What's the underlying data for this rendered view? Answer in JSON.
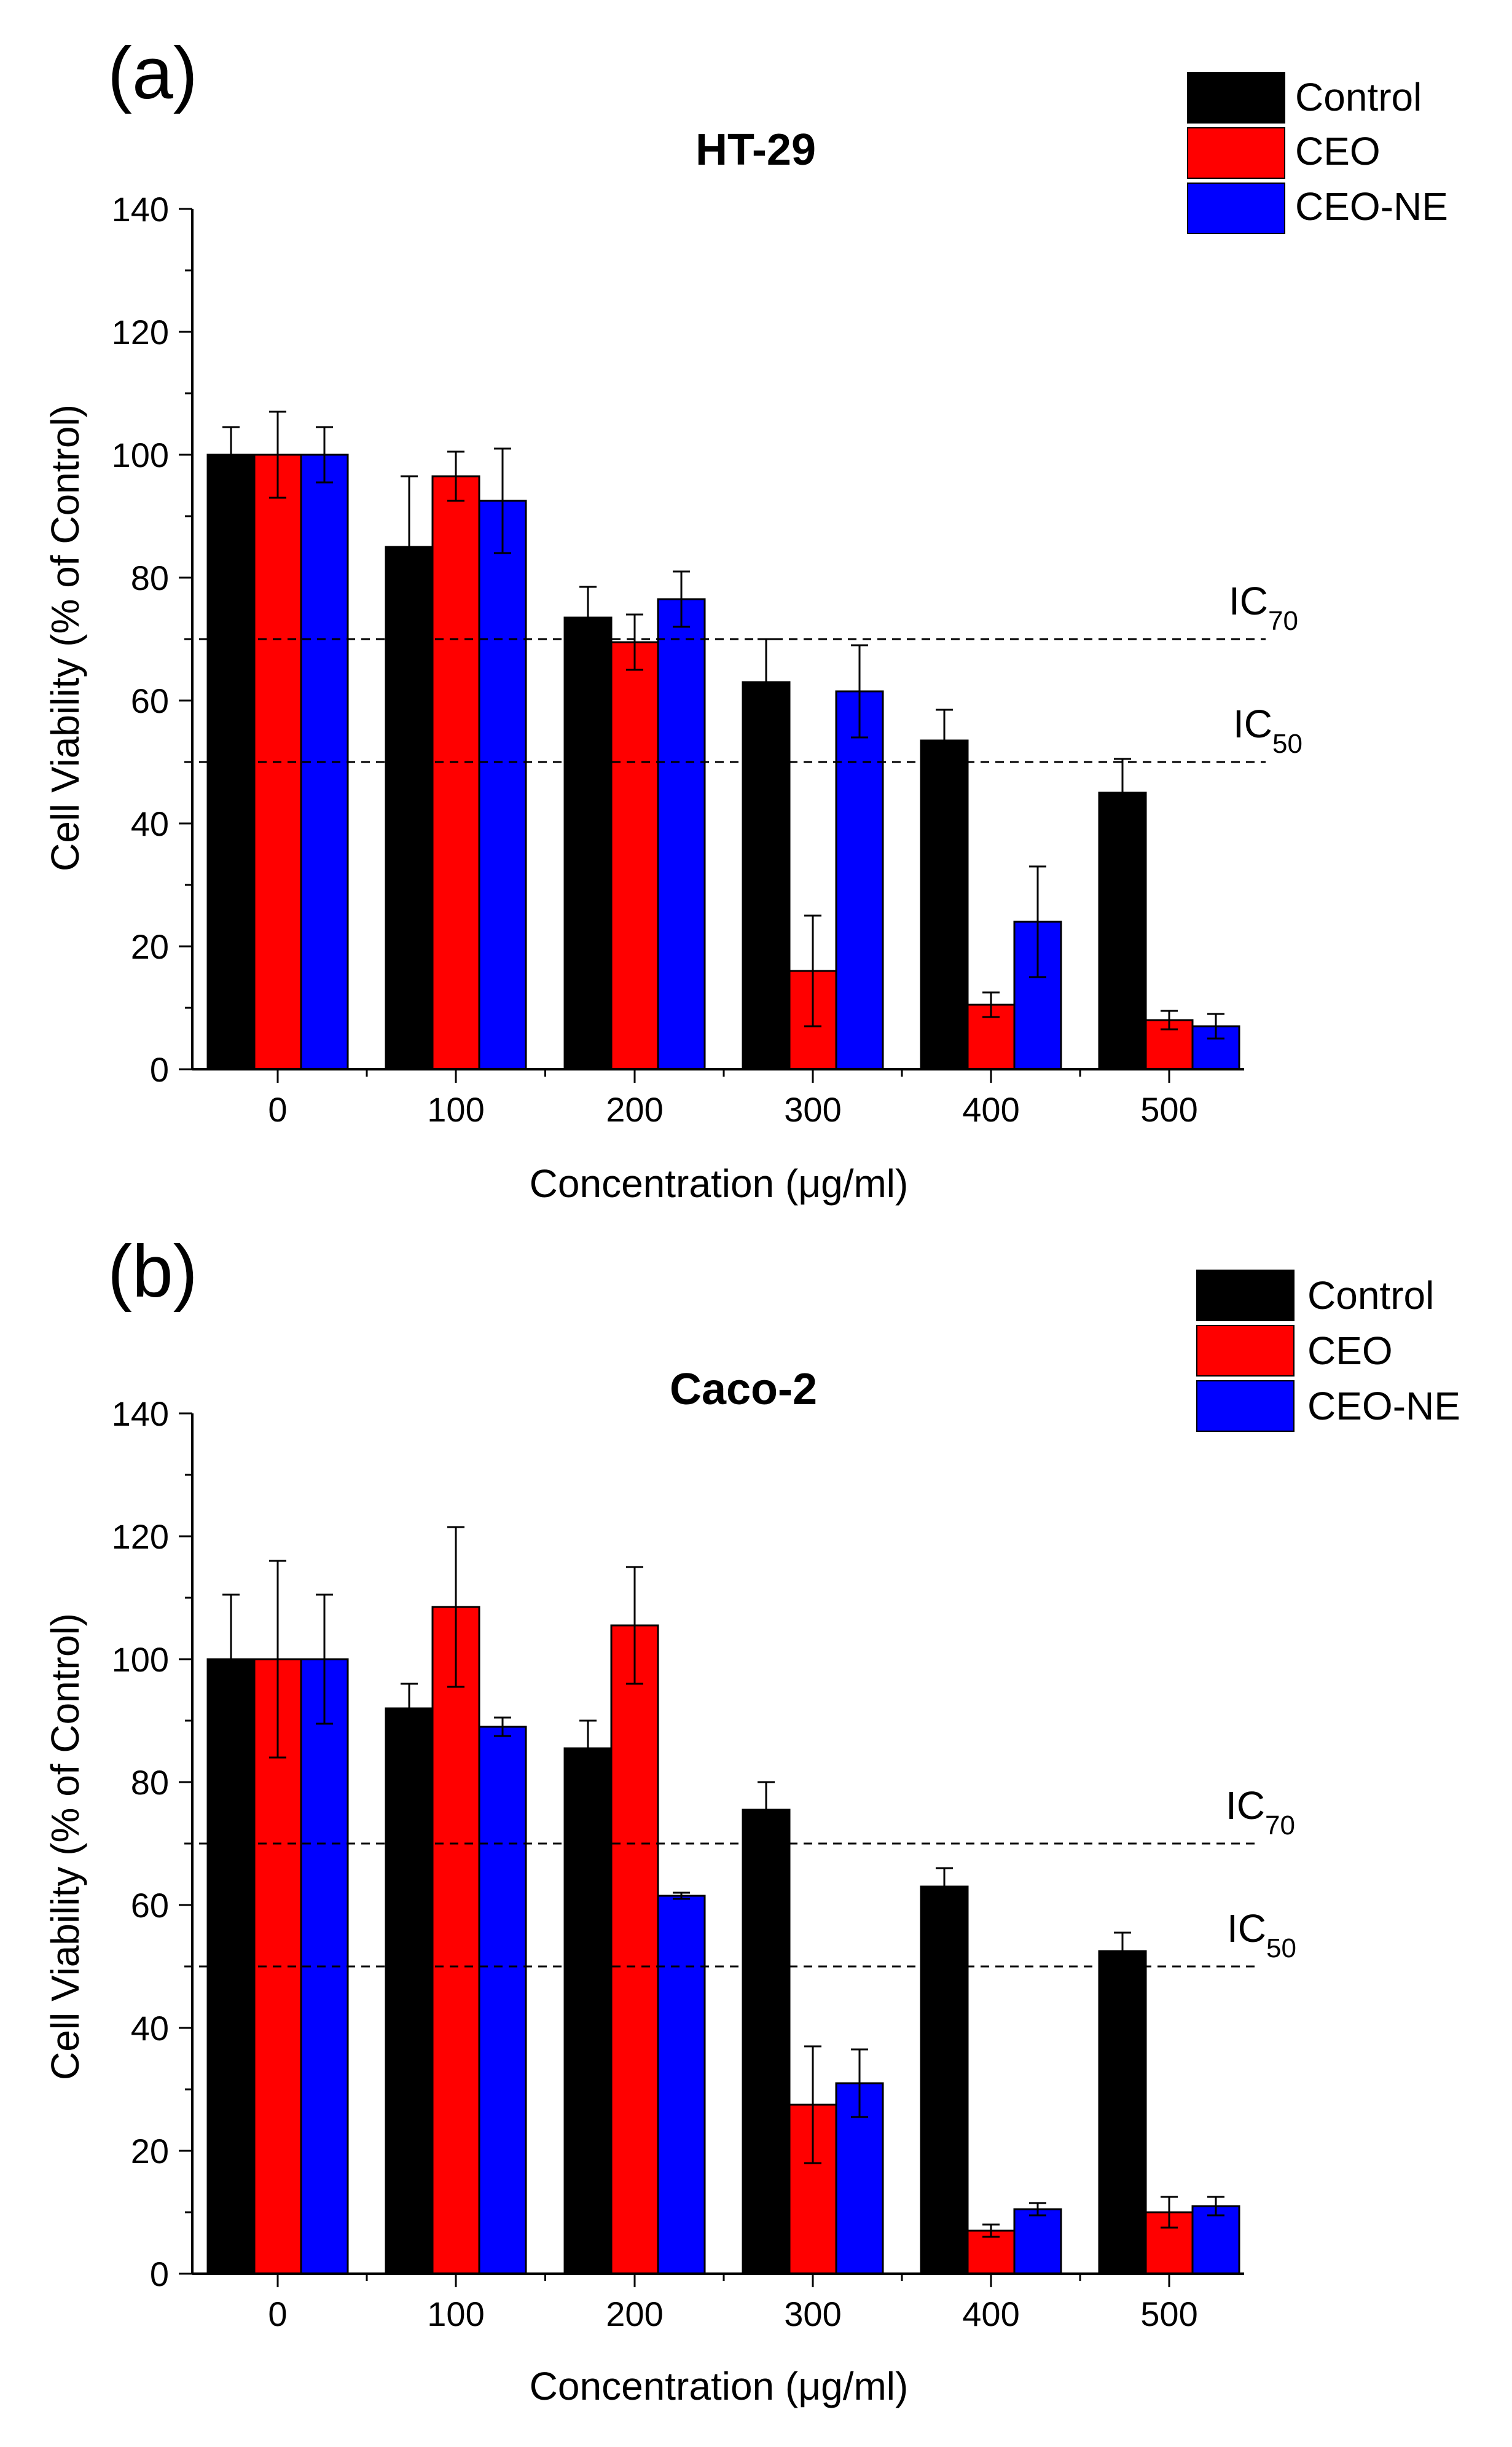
{
  "legend_labels": [
    "Control",
    "CEO",
    "CEO-NE"
  ],
  "colors": {
    "Control": "#000000",
    "CEO": "#ff0000",
    "CEO-NE": "#0000ff",
    "axis": "#000000",
    "dashed": "#000000"
  },
  "chart_data": [
    {
      "panel_label": "(a)",
      "type": "bar",
      "title": "HT-29",
      "xlabel": "Concentration (μg/ml)",
      "ylabel": "Cell Viability (% of Control)",
      "ylim": [
        0,
        140
      ],
      "yticks": [
        0,
        20,
        40,
        60,
        80,
        100,
        120,
        140
      ],
      "categories": [
        "0",
        "100",
        "200",
        "300",
        "400",
        "500"
      ],
      "series": [
        {
          "name": "Control",
          "values": [
            100,
            85,
            73.5,
            63,
            53.5,
            45
          ],
          "errors": [
            4.5,
            11.5,
            5,
            7,
            5,
            5.5
          ]
        },
        {
          "name": "CEO",
          "values": [
            100,
            96.5,
            69.5,
            16,
            10.5,
            8
          ],
          "errors": [
            7,
            4,
            4.5,
            9,
            2,
            1.5
          ]
        },
        {
          "name": "CEO-NE",
          "values": [
            100,
            92.5,
            76.5,
            61.5,
            24,
            7
          ],
          "errors": [
            4.5,
            8.5,
            4.5,
            7.5,
            9,
            2
          ]
        }
      ],
      "reference_lines": [
        {
          "value": 70,
          "label_main": "IC",
          "label_sub": "70"
        },
        {
          "value": 50,
          "label_main": "IC",
          "label_sub": "50"
        }
      ],
      "grid": false,
      "legend_position": "top-right"
    },
    {
      "panel_label": "(b)",
      "type": "bar",
      "title": "Caco-2",
      "xlabel": "Concentration (μg/ml)",
      "ylabel": "Cell Viability (% of Control)",
      "ylim": [
        0,
        140
      ],
      "yticks": [
        0,
        20,
        40,
        60,
        80,
        100,
        120,
        140
      ],
      "categories": [
        "0",
        "100",
        "200",
        "300",
        "400",
        "500"
      ],
      "series": [
        {
          "name": "Control",
          "values": [
            100,
            92,
            85.5,
            75.5,
            63,
            52.5
          ],
          "errors": [
            10.5,
            4,
            4.5,
            4.5,
            3,
            3
          ]
        },
        {
          "name": "CEO",
          "values": [
            100,
            108.5,
            105.5,
            27.5,
            7,
            10
          ],
          "errors": [
            16,
            13,
            9.5,
            9.5,
            1,
            2.5
          ]
        },
        {
          "name": "CEO-NE",
          "values": [
            100,
            89,
            61.5,
            31,
            10.5,
            11
          ],
          "errors": [
            10.5,
            1.5,
            0.5,
            5.5,
            1,
            1.5
          ]
        }
      ],
      "reference_lines": [
        {
          "value": 70,
          "label_main": "IC",
          "label_sub": "70"
        },
        {
          "value": 50,
          "label_main": "IC",
          "label_sub": "50"
        }
      ],
      "grid": false,
      "legend_position": "top-right"
    }
  ]
}
